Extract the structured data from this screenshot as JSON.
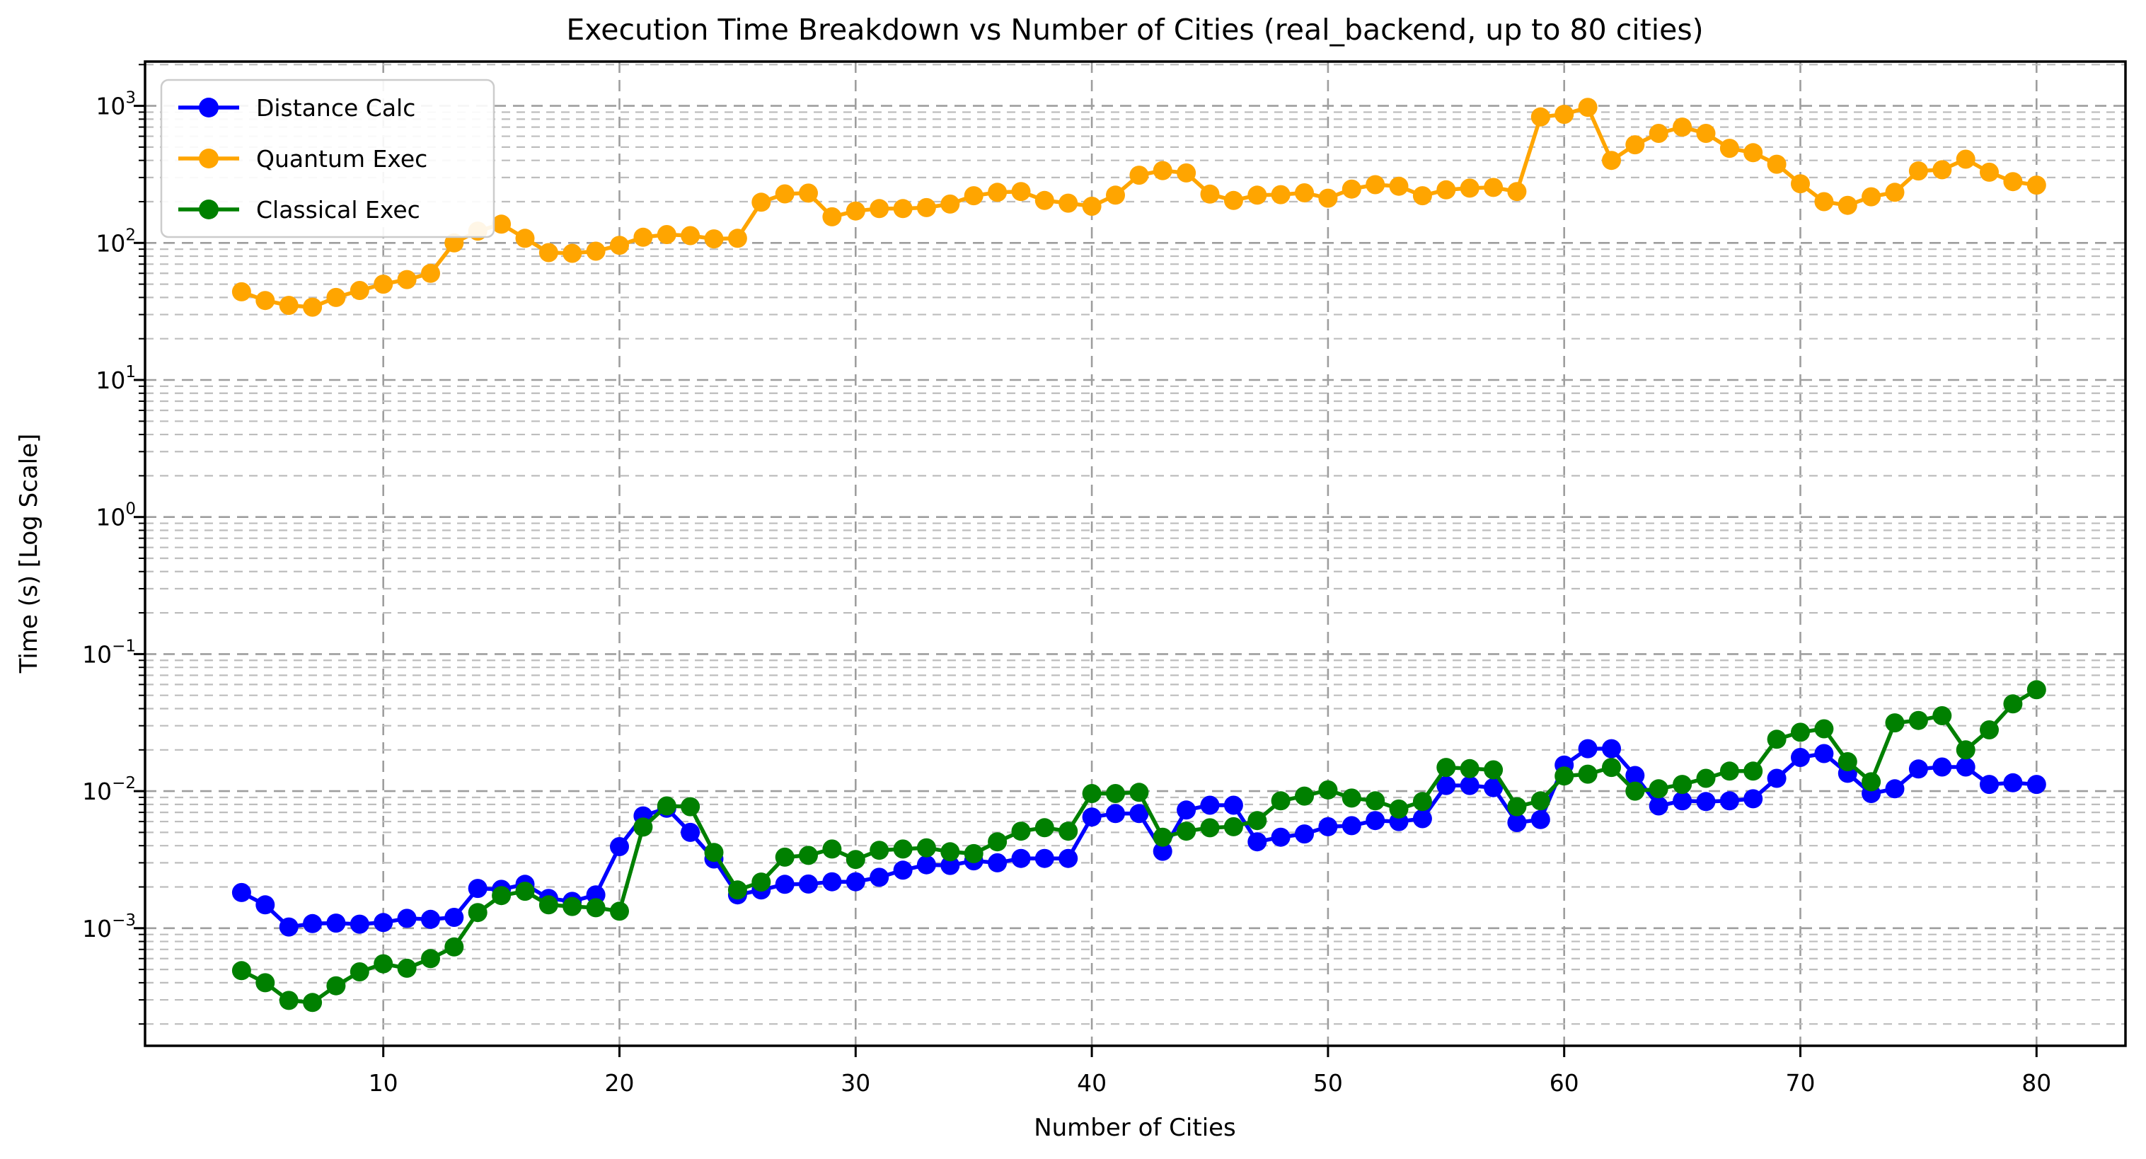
{
  "chart_data": {
    "type": "line",
    "title": "Execution Time Breakdown vs Number of Cities (real_backend, up to 80 cities)",
    "xlabel": "Number of Cities",
    "ylabel": "Time (s) [Log Scale]",
    "grid": "major-and-minor, dashed, log y-axis",
    "legend_position": "upper-left",
    "x_ticks": [
      10,
      20,
      30,
      40,
      50,
      60,
      70,
      80
    ],
    "y_tick_exponents": [
      3,
      2,
      1,
      0,
      -1,
      -2,
      -3
    ],
    "xlim": [
      -0.1,
      83.8
    ],
    "ylim": [
      0.00014,
      2080
    ],
    "x": [
      4,
      5,
      6,
      7,
      8,
      9,
      10,
      11,
      12,
      13,
      14,
      15,
      16,
      17,
      18,
      19,
      20,
      21,
      22,
      23,
      24,
      25,
      26,
      27,
      28,
      29,
      30,
      31,
      32,
      33,
      34,
      35,
      36,
      37,
      38,
      39,
      40,
      41,
      42,
      43,
      44,
      45,
      46,
      47,
      48,
      49,
      50,
      51,
      52,
      53,
      54,
      55,
      56,
      57,
      58,
      59,
      60,
      61,
      62,
      63,
      64,
      65,
      66,
      67,
      68,
      69,
      70,
      71,
      72,
      73,
      74,
      75,
      76,
      77,
      78,
      79,
      80
    ],
    "series": [
      {
        "name": "Distance Calc",
        "color": "#0000ff",
        "values": [
          0.00182,
          0.00148,
          0.00102,
          0.00108,
          0.00109,
          0.00107,
          0.0011,
          0.00118,
          0.00116,
          0.0012,
          0.00195,
          0.00192,
          0.00209,
          0.00165,
          0.00157,
          0.00175,
          0.00394,
          0.0066,
          0.0075,
          0.005,
          0.0032,
          0.00175,
          0.0019,
          0.00209,
          0.0021,
          0.00218,
          0.00218,
          0.00235,
          0.00265,
          0.0029,
          0.00287,
          0.0031,
          0.003,
          0.00323,
          0.00323,
          0.00323,
          0.00647,
          0.00686,
          0.00686,
          0.00364,
          0.00728,
          0.00789,
          0.00789,
          0.00427,
          0.00461,
          0.00487,
          0.0055,
          0.0056,
          0.0061,
          0.006,
          0.0063,
          0.011,
          0.011,
          0.0106,
          0.0059,
          0.0062,
          0.0155,
          0.0204,
          0.0204,
          0.013,
          0.0078,
          0.0085,
          0.0084,
          0.0085,
          0.0088,
          0.0124,
          0.0176,
          0.0188,
          0.0135,
          0.0096,
          0.0104,
          0.0145,
          0.015,
          0.015,
          0.0112,
          0.0115,
          0.0112
        ]
      },
      {
        "name": "Quantum Exec",
        "color": "#ffa500",
        "values": [
          44,
          38,
          35,
          34,
          40,
          45,
          50,
          54,
          60,
          100,
          122,
          137,
          108,
          85,
          84,
          87,
          96,
          110,
          115,
          113,
          107,
          108,
          198,
          228,
          231,
          155,
          171,
          178,
          178,
          181,
          192,
          221,
          234,
          237,
          204,
          195,
          185,
          223,
          312,
          337,
          324,
          227,
          204,
          223,
          225,
          232,
          212,
          247,
          266,
          259,
          221,
          244,
          251,
          254,
          237,
          830,
          867,
          975,
          400,
          520,
          630,
          700,
          630,
          490,
          455,
          375,
          270,
          200,
          188,
          217,
          234,
          335,
          342,
          408,
          328,
          280,
          264
        ]
      },
      {
        "name": "Classical Exec",
        "color": "#008000",
        "values": [
          0.00049,
          0.0004,
          0.000297,
          0.000287,
          0.00038,
          0.00048,
          0.00055,
          0.00051,
          0.0006,
          0.00073,
          0.0013,
          0.00173,
          0.00186,
          0.00148,
          0.00144,
          0.00141,
          0.00133,
          0.00547,
          0.0078,
          0.0077,
          0.00357,
          0.0019,
          0.00217,
          0.0033,
          0.0034,
          0.00378,
          0.00317,
          0.0037,
          0.00378,
          0.00386,
          0.00361,
          0.0035,
          0.00427,
          0.0051,
          0.00541,
          0.0051,
          0.0096,
          0.0096,
          0.0098,
          0.00461,
          0.0051,
          0.0054,
          0.0055,
          0.0061,
          0.0085,
          0.0092,
          0.0102,
          0.0089,
          0.0085,
          0.0074,
          0.0084,
          0.0149,
          0.0146,
          0.0143,
          0.0077,
          0.0085,
          0.0129,
          0.0133,
          0.0149,
          0.01,
          0.0104,
          0.0112,
          0.0124,
          0.014,
          0.014,
          0.0239,
          0.0269,
          0.0285,
          0.0164,
          0.0117,
          0.0315,
          0.0328,
          0.0355,
          0.02,
          0.028,
          0.0433,
          0.0549
        ]
      }
    ]
  }
}
